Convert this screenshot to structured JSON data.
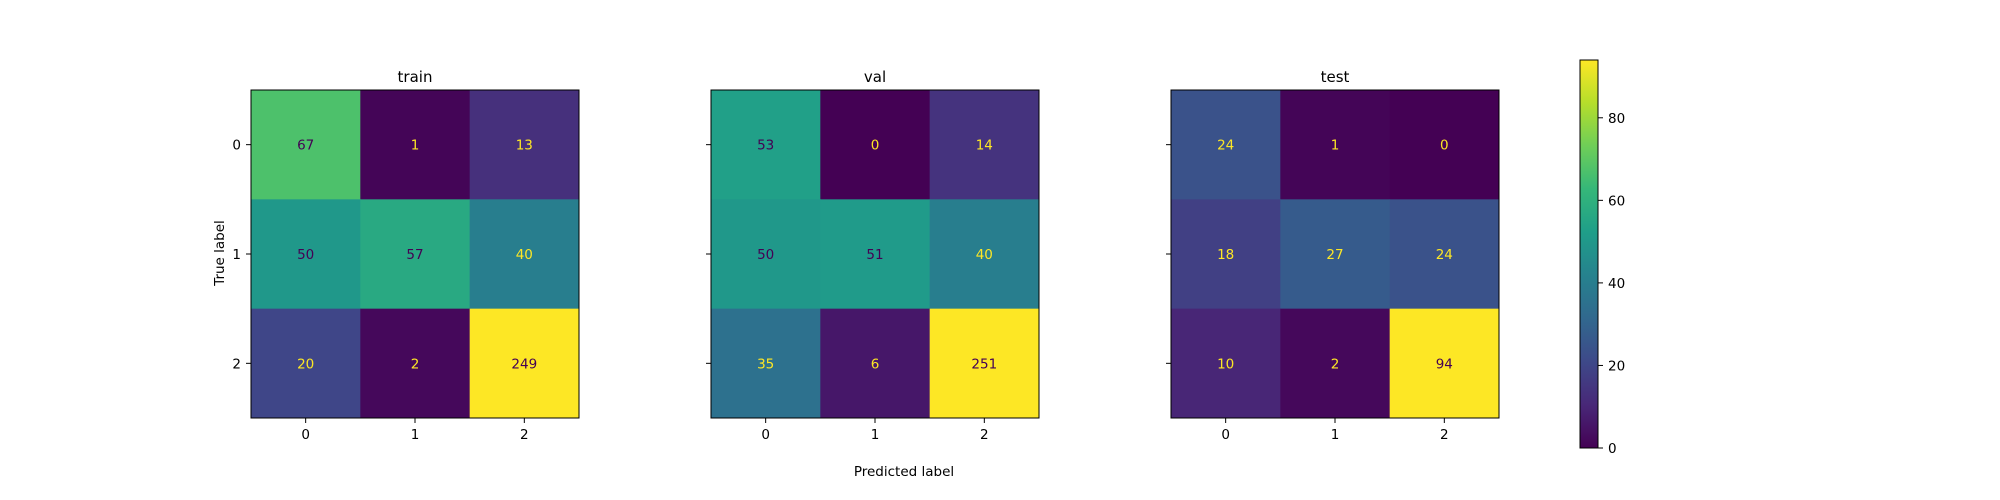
{
  "chart_data": {
    "type": "heatmap",
    "xlabel": "Predicted label",
    "ylabel": "True label",
    "x_ticks": [
      "0",
      "1",
      "2"
    ],
    "y_ticks": [
      "0",
      "1",
      "2"
    ],
    "colormap": "viridis",
    "panels": [
      {
        "title": "train",
        "matrix": [
          [
            67,
            1,
            13
          ],
          [
            50,
            57,
            40
          ],
          [
            20,
            2,
            249
          ]
        ]
      },
      {
        "title": "val",
        "matrix": [
          [
            53,
            0,
            14
          ],
          [
            50,
            51,
            40
          ],
          [
            35,
            6,
            251
          ]
        ]
      },
      {
        "title": "test",
        "matrix": [
          [
            24,
            1,
            0
          ],
          [
            18,
            27,
            24
          ],
          [
            10,
            2,
            94
          ]
        ]
      }
    ],
    "colorbar": {
      "range": [
        0,
        94
      ],
      "ticks": [
        0,
        20,
        40,
        60,
        80
      ]
    },
    "annotation_colors": {
      "light": "#fde725",
      "dark": "#440154"
    }
  }
}
